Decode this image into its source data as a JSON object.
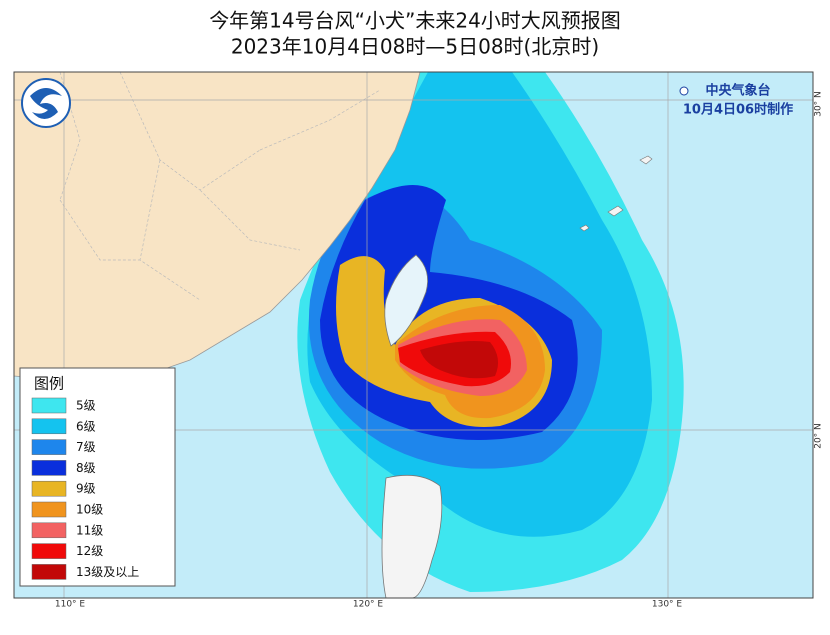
{
  "header": {
    "title": "今年第14号台风“小犬”未来24小时大风预报图",
    "subtitle": "2023年10月4日08时—5日08时(北京时)"
  },
  "agency": {
    "name": "中央气象台",
    "made": "10月4日06时制作"
  },
  "legend": {
    "title": "图例",
    "items": [
      {
        "label": "5级",
        "color": "#3ee6ef"
      },
      {
        "label": "6级",
        "color": "#14c3ef"
      },
      {
        "label": "7级",
        "color": "#1e86ec"
      },
      {
        "label": "8级",
        "color": "#0a2fdc"
      },
      {
        "label": "9级",
        "color": "#e8b524"
      },
      {
        "label": "10级",
        "color": "#f0941e"
      },
      {
        "label": "11级",
        "color": "#f26262"
      },
      {
        "label": "12级",
        "color": "#f00a0a"
      },
      {
        "label": "13级及以上",
        "color": "#c20808"
      }
    ]
  },
  "axes": {
    "longitude": [
      "110° E",
      "120° E",
      "130° E"
    ],
    "latitude": [
      "30° N",
      "20° N"
    ]
  }
}
